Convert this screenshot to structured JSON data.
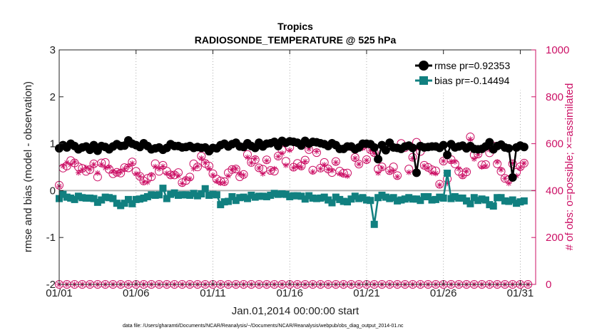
{
  "chart_data": {
    "type": "line",
    "title": "Tropics",
    "subtitle": "RADIOSONDE_TEMPERATURE @ 525 hPa",
    "xlabel": "Jan.01,2014 00:00:00 start",
    "ylabel_left": "rmse and bias (model - observation)",
    "ylabel_right": "# of obs: o=possible; ×=assimilated",
    "footnote": "data file: /Users/gharamti/Documents/NCAR/Reanalysis/~/Documents/NCAR/Reanalysis/webpub/obs_diag_output_2014-01.nc",
    "x_ticks": [
      1,
      6,
      11,
      16,
      21,
      26,
      31
    ],
    "x_tick_labels": [
      "01/01",
      "01/06",
      "01/11",
      "01/16",
      "01/21",
      "01/26",
      "01/31"
    ],
    "xlim": [
      1,
      32
    ],
    "ylim_left": [
      -2,
      3
    ],
    "y_ticks_left": [
      -2,
      -1,
      0,
      1,
      2,
      3
    ],
    "y_tick_labels_left": [
      "-2",
      "-1",
      "0",
      "1",
      "2",
      "3"
    ],
    "ylim_right": [
      0,
      1000
    ],
    "y_ticks_right": [
      0,
      200,
      400,
      600,
      800,
      1000
    ],
    "y_tick_labels_right": [
      "0",
      "200",
      "400",
      "600",
      "800",
      "1000"
    ],
    "zero_line": 0,
    "legend_position": "top-right",
    "x": [
      1.0,
      1.25,
      1.5,
      1.75,
      2.0,
      2.25,
      2.5,
      2.75,
      3.0,
      3.25,
      3.5,
      3.75,
      4.0,
      4.25,
      4.5,
      4.75,
      5.0,
      5.25,
      5.5,
      5.75,
      6.0,
      6.25,
      6.5,
      6.75,
      7.0,
      7.25,
      7.5,
      7.75,
      8.0,
      8.25,
      8.5,
      8.75,
      9.0,
      9.25,
      9.5,
      9.75,
      10.0,
      10.25,
      10.5,
      10.75,
      11.0,
      11.25,
      11.5,
      11.75,
      12.0,
      12.25,
      12.5,
      12.75,
      13.0,
      13.25,
      13.5,
      13.75,
      14.0,
      14.25,
      14.5,
      14.75,
      15.0,
      15.25,
      15.5,
      15.75,
      16.0,
      16.25,
      16.5,
      16.75,
      17.0,
      17.25,
      17.5,
      17.75,
      18.0,
      18.25,
      18.5,
      18.75,
      19.0,
      19.25,
      19.5,
      19.75,
      20.0,
      20.25,
      20.5,
      20.75,
      21.0,
      21.25,
      21.5,
      21.75,
      22.0,
      22.25,
      22.5,
      22.75,
      23.0,
      23.25,
      23.5,
      23.75,
      24.0,
      24.25,
      24.5,
      24.75,
      25.0,
      25.25,
      25.5,
      25.75,
      26.0,
      26.25,
      26.5,
      26.75,
      27.0,
      27.25,
      27.5,
      27.75,
      28.0,
      28.25,
      28.5,
      28.75,
      29.0,
      29.25,
      29.5,
      29.75,
      30.0,
      30.25,
      30.5,
      30.75,
      31.0,
      31.25
    ],
    "series": [
      {
        "name": "rmse",
        "legend_label": "rmse pr=0.92353",
        "color": "#000000",
        "marker": "circle",
        "values": [
          0.9,
          0.97,
          0.92,
          1.0,
          0.95,
          0.88,
          0.92,
          0.94,
          0.87,
          0.97,
          0.85,
          0.95,
          0.93,
          0.88,
          0.94,
          0.99,
          0.95,
          0.96,
          1.07,
          1.0,
          0.97,
          0.93,
          1.01,
          0.95,
          0.88,
          0.9,
          0.92,
          0.87,
          0.91,
          0.99,
          0.95,
          0.95,
          0.92,
          0.93,
          0.95,
          0.91,
          0.93,
          0.91,
          0.92,
          0.84,
          0.91,
          0.9,
          0.97,
          1.0,
          0.94,
          0.99,
          1.02,
          0.94,
          0.93,
          1.01,
          0.95,
          0.91,
          1.02,
          0.94,
          1.0,
          1.01,
          1.04,
          0.95,
          1.06,
          1.02,
          1.05,
          1.04,
          1.02,
          0.96,
          1.06,
          1.0,
          1.04,
          1.03,
          1.01,
          0.99,
          0.95,
          1.01,
          0.97,
          0.89,
          0.89,
          0.94,
          0.94,
          0.88,
          0.92,
          1.0,
          1.0,
          0.99,
          0.92,
          0.67,
          0.97,
          0.86,
          1.02,
          0.92,
          0.91,
          0.89,
          0.94,
          0.96,
          0.91,
          0.38,
          0.95,
          0.92,
          0.93,
          0.94,
          0.94,
          0.91,
          0.97,
          0.76,
          0.99,
          0.92,
          0.94,
          0.96,
          0.9,
          0.95,
          0.89,
          0.88,
          0.89,
          0.94,
          1.03,
          0.88,
          0.95,
          0.98,
          0.92,
          0.9,
          0.28,
          0.92,
          0.96,
          0.93
        ]
      },
      {
        "name": "bias",
        "legend_label": "bias pr=-0.14494",
        "color": "#118080",
        "marker": "square",
        "values": [
          -0.17,
          -0.08,
          -0.14,
          -0.16,
          -0.19,
          -0.12,
          -0.15,
          -0.16,
          -0.16,
          -0.17,
          -0.25,
          -0.2,
          -0.14,
          -0.15,
          -0.17,
          -0.27,
          -0.32,
          -0.27,
          -0.19,
          -0.28,
          -0.19,
          -0.18,
          -0.16,
          -0.13,
          -0.09,
          -0.1,
          -0.09,
          0.05,
          -0.17,
          -0.08,
          -0.05,
          -0.1,
          -0.09,
          -0.09,
          -0.1,
          -0.06,
          -0.11,
          -0.07,
          0.04,
          -0.1,
          -0.08,
          -0.09,
          -0.3,
          -0.24,
          -0.23,
          -0.13,
          -0.21,
          -0.15,
          -0.14,
          -0.17,
          -0.1,
          -0.14,
          -0.12,
          -0.12,
          -0.13,
          -0.1,
          -0.06,
          -0.08,
          -0.07,
          -0.08,
          -0.13,
          -0.11,
          -0.11,
          -0.12,
          -0.18,
          -0.11,
          -0.16,
          -0.17,
          -0.16,
          -0.14,
          -0.2,
          -0.26,
          -0.14,
          -0.19,
          -0.23,
          -0.24,
          -0.18,
          -0.12,
          -0.17,
          -0.15,
          -0.2,
          -0.21,
          -0.72,
          -0.15,
          -0.1,
          -0.14,
          -0.17,
          -0.15,
          -0.22,
          -0.2,
          -0.18,
          -0.15,
          -0.18,
          -0.18,
          -0.21,
          -0.13,
          -0.13,
          -0.2,
          -0.19,
          -0.14,
          -0.16,
          0.37,
          -0.17,
          -0.13,
          -0.16,
          -0.16,
          -0.22,
          -0.28,
          -0.15,
          -0.21,
          -0.18,
          -0.2,
          -0.3,
          -0.33,
          -0.15,
          -0.15,
          -0.22,
          -0.23,
          -0.2,
          -0.27,
          -0.24,
          -0.22
        ]
      },
      {
        "name": "obs possible",
        "color": "#cc1166",
        "marker": "circle-open",
        "axis": "right",
        "values": [
          423,
          496,
          505,
          528,
          518,
          501,
          495,
          482,
          489,
          514,
          458,
          518,
          520,
          491,
          472,
          478,
          475,
          498,
          497,
          522,
          482,
          461,
          441,
          452,
          459,
          515,
          482,
          508,
          483,
          467,
          467,
          477,
          434,
          443,
          458,
          514,
          501,
          547,
          516,
          505,
          472,
          449,
          441,
          438,
          476,
          490,
          492,
          459,
          469,
          554,
          520,
          532,
          497,
          491,
          531,
          486,
          483,
          547,
          573,
          525,
          584,
          500,
          516,
          505,
          530,
          575,
          487,
          562,
          496,
          520,
          492,
          477,
          524,
          483,
          474,
          475,
          587,
          541,
          513,
          591,
          532,
          575,
          562,
          492,
          501,
          585,
          485,
          501,
          464,
          601,
          583,
          492,
          542,
          606,
          567,
          508,
          499,
          489,
          484,
          427,
          526,
          450,
          532,
          514,
          482,
          467,
          480,
          629,
          552,
          556,
          510,
          511,
          561,
          590,
          514,
          482,
          452,
          447,
          514,
          478,
          502,
          517
        ]
      },
      {
        "name": "obs assimilated",
        "color": "#cc1166",
        "marker": "asterisk",
        "axis": "right",
        "values": [
          419,
          505,
          519,
          511,
          523,
          476,
          488,
          498,
          492,
          511,
          475,
          511,
          497,
          500,
          480,
          476,
          479,
          493,
          503,
          516,
          472,
          461,
          436,
          436,
          467,
          502,
          493,
          503,
          474,
          464,
          470,
          464,
          430,
          450,
          450,
          493,
          504,
          538,
          519,
          494,
          466,
          440,
          432,
          434,
          463,
          491,
          493,
          470,
          466,
          542,
          518,
          537,
          496,
          472,
          527,
          485,
          493,
          545,
          559,
          508,
          572,
          497,
          503,
          499,
          524,
          578,
          480,
          567,
          493,
          510,
          491,
          486,
          520,
          472,
          468,
          462,
          588,
          538,
          513,
          581,
          529,
          572,
          559,
          475,
          496,
          579,
          481,
          485,
          459,
          579,
          591,
          478,
          537,
          581,
          580,
          505,
          496,
          476,
          473,
          424,
          526,
          431,
          524,
          523,
          493,
          462,
          483,
          619,
          535,
          554,
          501,
          505,
          574,
          579,
          522,
          489,
          452,
          431,
          517,
          463,
          498,
          517
        ]
      }
    ],
    "zero_count_x": [
      1.0,
      1.5,
      2.0,
      2.5,
      3.0,
      3.5,
      4.0,
      4.5,
      5.0,
      5.5,
      6.0,
      6.5,
      7.0,
      7.5,
      8.0,
      8.5,
      9.0,
      9.5,
      10.0,
      10.5,
      11.0,
      11.5,
      12.0,
      12.5,
      13.0,
      13.5,
      14.0,
      14.5,
      15.0,
      15.5,
      16.0,
      16.5,
      17.0,
      17.5,
      18.0,
      18.5,
      19.0,
      19.5,
      20.0,
      20.5,
      21.0,
      21.5,
      22.0,
      22.5,
      23.0,
      23.5,
      24.0,
      24.5,
      25.0,
      25.5,
      26.0,
      26.5,
      27.0,
      27.5,
      28.0,
      28.5,
      29.0,
      29.5,
      30.0,
      30.5,
      31.0,
      31.5
    ]
  }
}
